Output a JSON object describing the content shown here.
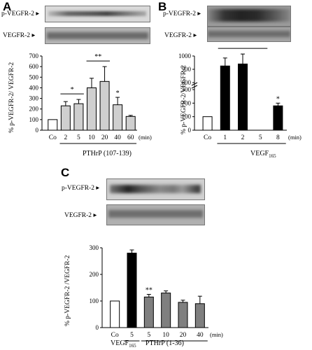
{
  "panels": {
    "A": {
      "letter": "A",
      "blot_top_label": "p-VEGFR-2",
      "blot_bottom_label": "VEGFR-2",
      "group_label": "PTHrP (107-139)"
    },
    "B": {
      "letter": "B",
      "blot_top_label": "p-VEGFR-2",
      "blot_bottom_label": "VEGFR-2",
      "group_label_main": "VEGF",
      "group_label_sub": "165"
    },
    "C": {
      "letter": "C",
      "blot_top_label": "p-VEGFR-2",
      "blot_bottom_label": "VEGFR-2",
      "group1_main": "VEGF",
      "group1_sub": "165",
      "group2": "PTHrP (1-36)"
    }
  },
  "chart_data": [
    {
      "panel": "A",
      "type": "bar",
      "categories": [
        "Co",
        "2",
        "5",
        "10",
        "20",
        "40",
        "60"
      ],
      "x_unit": "(min)",
      "values": [
        100,
        230,
        250,
        400,
        460,
        240,
        130
      ],
      "errors": [
        0,
        40,
        40,
        90,
        140,
        70,
        10
      ],
      "bar_colors": [
        "#ffffff",
        "#cfcfcf",
        "#cfcfcf",
        "#cfcfcf",
        "#cfcfcf",
        "#cfcfcf",
        "#cfcfcf"
      ],
      "ylabel": "% p-VEGFR-2/ VEGFR-2",
      "ylim": [
        0,
        700
      ],
      "yticks": [
        "0",
        "100",
        "200",
        "300",
        "400",
        "500",
        "600",
        "700"
      ],
      "significance": [
        {
          "label": "*",
          "from": "2",
          "to": "5"
        },
        {
          "label": "**",
          "from": "10",
          "to": "20"
        },
        {
          "label": "*",
          "over": "40"
        }
      ]
    },
    {
      "panel": "B",
      "type": "bar",
      "categories": [
        "Co",
        "1",
        "2",
        "5",
        "8"
      ],
      "x_unit": "(min)",
      "values": [
        100,
        925,
        940,
        340,
        180
      ],
      "errors": [
        0,
        60,
        75,
        0,
        20
      ],
      "bar_colors": [
        "#ffffff",
        "#000000",
        "#000000",
        "#000000",
        "#000000"
      ],
      "ylabel": "% p-VEGFR-2/VEGFR-2",
      "axis_break": true,
      "ylim": [
        0,
        1000
      ],
      "yticks": [
        "0",
        "100",
        "200",
        "300",
        "800",
        "900",
        "1000"
      ],
      "significance": [
        {
          "label": "**",
          "from": "1",
          "to": "5"
        },
        {
          "label": "*",
          "over": "8"
        }
      ]
    },
    {
      "panel": "C",
      "type": "bar",
      "categories": [
        "Co",
        "5",
        "5",
        "10",
        "20",
        "40"
      ],
      "x_unit": "(min)",
      "values": [
        100,
        280,
        115,
        130,
        95,
        90
      ],
      "errors": [
        0,
        12,
        10,
        8,
        8,
        28
      ],
      "bar_colors": [
        "#ffffff",
        "#000000",
        "#7f7f7f",
        "#7f7f7f",
        "#7f7f7f",
        "#7f7f7f"
      ],
      "ylabel": "% p-VEGFR-2 /VEGFR-2",
      "ylim": [
        0,
        300
      ],
      "yticks": [
        "0",
        "100",
        "200",
        "300"
      ],
      "significance": [
        {
          "label": "**",
          "over": "5"
        }
      ]
    }
  ]
}
